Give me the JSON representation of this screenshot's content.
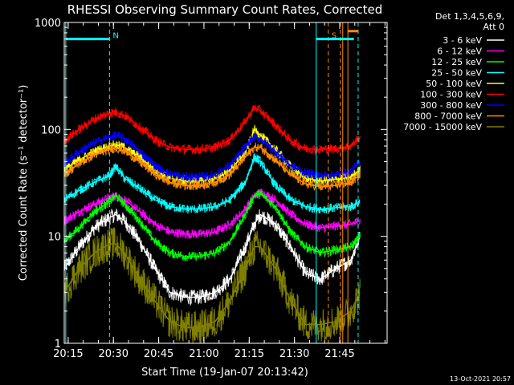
{
  "chart_data": {
    "type": "line",
    "title": "RHESSI Observing Summary Count Rates, Corrected",
    "xlabel": "Start Time (19-Jan-07 20:13:42)",
    "ylabel": "Corrected Count Rate (s⁻¹ detector⁻¹)",
    "yscale": "log",
    "ylim": [
      1,
      1000
    ],
    "y_ticks": [
      {
        "value": 1,
        "label": "1"
      },
      {
        "value": 10,
        "label": "10"
      },
      {
        "value": 100,
        "label": "100"
      },
      {
        "value": 1000,
        "label": "1000"
      }
    ],
    "x_range_min": [
      0,
      107
    ],
    "x_ticks": [
      {
        "value": 1.3,
        "label": "20:15"
      },
      {
        "value": 16.3,
        "label": "20:30"
      },
      {
        "value": 31.3,
        "label": "20:45"
      },
      {
        "value": 46.3,
        "label": "21:00"
      },
      {
        "value": 61.3,
        "label": "21:15"
      },
      {
        "value": 76.3,
        "label": "21:30"
      },
      {
        "value": 91.3,
        "label": "21:45"
      }
    ],
    "x_unit_note": "x values are minutes after 20:13:42",
    "legend": {
      "header1": "Det 1,3,4,5,6,9,",
      "header2": "Att 0",
      "placement": "right"
    },
    "series": [
      {
        "name": "3 - 6 keV",
        "color": "#ffffff",
        "x": [
          0,
          5,
          10,
          15,
          17,
          20,
          25,
          30,
          35,
          40,
          45,
          50,
          55,
          60,
          63,
          65,
          70,
          75,
          80,
          85,
          90,
          95,
          98
        ],
        "values": [
          5,
          8,
          12,
          15,
          16,
          14,
          9,
          5,
          3,
          2.7,
          2.7,
          3,
          4,
          8,
          13,
          16,
          13,
          8,
          4.5,
          4,
          5,
          6,
          10
        ]
      },
      {
        "name": "6 - 12 keV",
        "color": "#ff00ff",
        "x": [
          0,
          5,
          10,
          15,
          17,
          20,
          25,
          30,
          35,
          40,
          45,
          50,
          55,
          60,
          63,
          65,
          70,
          75,
          80,
          85,
          90,
          95,
          98
        ],
        "values": [
          14,
          17,
          20,
          23,
          24,
          22,
          17,
          13,
          11,
          10.5,
          10.5,
          11,
          13,
          18,
          24,
          26,
          22,
          16,
          13,
          12,
          12.5,
          13,
          14
        ]
      },
      {
        "name": "12 - 25 keV",
        "color": "#00ff00",
        "x": [
          0,
          5,
          10,
          15,
          17,
          20,
          25,
          30,
          35,
          40,
          45,
          50,
          55,
          60,
          63,
          65,
          70,
          75,
          80,
          85,
          90,
          95,
          98
        ],
        "values": [
          9,
          12,
          17,
          21,
          24,
          20,
          14,
          9,
          7,
          6.5,
          6.5,
          7,
          9,
          16,
          24,
          25,
          19,
          11,
          8,
          7,
          7.5,
          8,
          10
        ]
      },
      {
        "name": "25 - 50 keV",
        "color": "#00ffff",
        "x": [
          0,
          5,
          10,
          15,
          17,
          20,
          25,
          30,
          35,
          40,
          45,
          50,
          55,
          60,
          63,
          65,
          70,
          75,
          80,
          85,
          90,
          95,
          98
        ],
        "values": [
          22,
          27,
          32,
          37,
          45,
          35,
          28,
          22,
          19,
          18,
          18,
          19,
          22,
          32,
          55,
          50,
          30,
          22,
          19,
          18,
          18.5,
          19,
          21
        ]
      },
      {
        "name": "50 - 100 keV",
        "color": "#ffff00",
        "x": [
          0,
          5,
          10,
          15,
          17,
          20,
          25,
          30,
          35,
          40,
          45,
          50,
          55,
          60,
          63,
          65,
          70,
          75,
          80,
          85,
          90,
          95,
          98
        ],
        "values": [
          42,
          52,
          62,
          70,
          72,
          68,
          55,
          42,
          35,
          33,
          33,
          35,
          42,
          60,
          100,
          88,
          65,
          45,
          35,
          33,
          34,
          36,
          42
        ]
      },
      {
        "name": "100 - 300 keV",
        "color": "#ff0000",
        "x": [
          0,
          5,
          10,
          15,
          17,
          20,
          25,
          30,
          35,
          40,
          45,
          50,
          55,
          60,
          63,
          65,
          70,
          75,
          80,
          85,
          90,
          95,
          98
        ],
        "values": [
          78,
          100,
          125,
          142,
          145,
          135,
          105,
          80,
          68,
          65,
          65,
          68,
          80,
          118,
          160,
          150,
          110,
          78,
          66,
          65,
          66,
          70,
          85
        ]
      },
      {
        "name": "300 - 800 keV",
        "color": "#0000ff",
        "x": [
          0,
          5,
          10,
          15,
          17,
          20,
          25,
          30,
          35,
          40,
          45,
          50,
          55,
          60,
          63,
          65,
          70,
          75,
          80,
          85,
          90,
          95,
          98
        ],
        "values": [
          48,
          62,
          75,
          85,
          88,
          82,
          62,
          46,
          38,
          36,
          36,
          38,
          46,
          68,
          85,
          82,
          62,
          46,
          39,
          37,
          38,
          40,
          50
        ]
      },
      {
        "name": "800 - 7000 keV",
        "color": "#ff8c00",
        "x": [
          0,
          5,
          10,
          15,
          17,
          20,
          25,
          30,
          35,
          40,
          45,
          50,
          55,
          60,
          63,
          65,
          70,
          75,
          80,
          85,
          90,
          95,
          98
        ],
        "values": [
          38,
          48,
          58,
          65,
          67,
          63,
          50,
          38,
          32,
          30,
          30,
          32,
          38,
          55,
          68,
          68,
          52,
          38,
          31,
          29,
          30,
          32,
          38
        ]
      },
      {
        "name": "7000 - 15000 keV",
        "color": "#808000",
        "x": [
          0,
          5,
          10,
          15,
          17,
          20,
          25,
          30,
          35,
          40,
          45,
          50,
          55,
          60,
          63,
          65,
          70,
          75,
          80,
          85,
          90,
          95,
          98
        ],
        "values": [
          3,
          5,
          7,
          8.5,
          8.5,
          7,
          4,
          2.5,
          1.6,
          1.4,
          1.4,
          1.6,
          2.5,
          5,
          8,
          8,
          5,
          2.5,
          1.5,
          1.5,
          1.6,
          2,
          3
        ]
      }
    ],
    "annotations": [
      {
        "label": "N",
        "color": "#00ffff",
        "bar_start": 0.5,
        "bar_end": 15,
        "marker": 15,
        "level": 700
      },
      {
        "label": "S",
        "color": "#ff8c00",
        "marker": 87.5,
        "level": 700
      },
      {
        "label": "",
        "color": "#00ffff",
        "bar_start": 83.5,
        "bar_end": 96,
        "level": 700
      },
      {
        "label": "",
        "color": "#ff8c00",
        "bar_start": 94,
        "bar_end": 97.5,
        "level": 830
      }
    ],
    "vertical_lines": [
      {
        "x": 0.5,
        "color": "#00ffff",
        "style": "solid"
      },
      {
        "x": 15,
        "color": "#00ffff",
        "style": "dashed"
      },
      {
        "x": 83.5,
        "color": "#00ffff",
        "style": "solid"
      },
      {
        "x": 87.5,
        "color": "#ff8c00",
        "style": "dashed"
      },
      {
        "x": 91.5,
        "color": "#ff8c00",
        "style": "dashed"
      },
      {
        "x": 92.3,
        "color": "#ff8c00",
        "style": "solid"
      },
      {
        "x": 94,
        "color": "#ff8c00",
        "style": "solid"
      },
      {
        "x": 97.4,
        "color": "#00ffff",
        "style": "dashed"
      }
    ],
    "grid": false
  },
  "footer": {
    "timestamp": "13-Oct-2021 20:57"
  }
}
